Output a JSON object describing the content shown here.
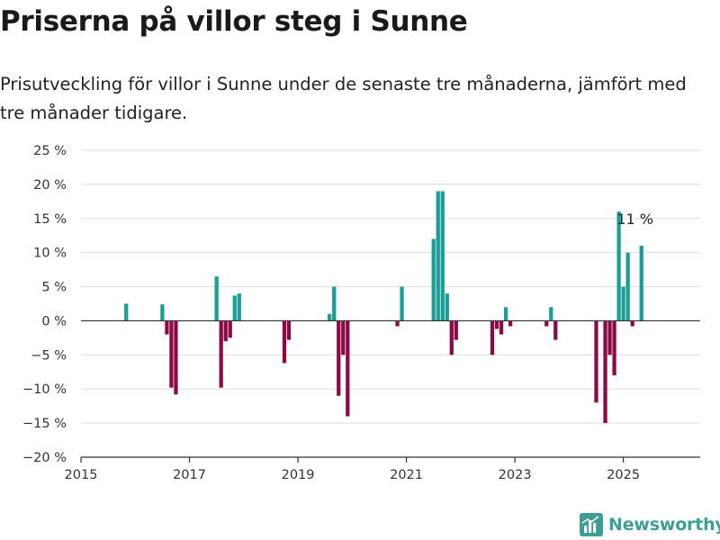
{
  "title": "Priserna på villor steg i Sunne",
  "subtitle": "Prisutveckling för villor i Sunne under de senaste tre månaderna, jämfört med tre månader tidigare.",
  "brand": {
    "name": "Newsworthy",
    "icon": "bar-chart-icon"
  },
  "colors": {
    "positive": "#1a9e96",
    "negative": "#8c0a45",
    "grid": "#dddddd",
    "zero_line": "#333333",
    "brand": "#3d9e95"
  },
  "chart_data": {
    "type": "bar",
    "ylim": [
      -20,
      25
    ],
    "xlim": [
      "2015-01",
      "2026-06"
    ],
    "yticks": [
      25,
      20,
      15,
      10,
      5,
      0,
      -5,
      -10,
      -15,
      -20
    ],
    "ytick_labels": [
      "25 %",
      "20 %",
      "15 %",
      "10 %",
      "5 %",
      "0 %",
      "−5 %",
      "−10 %",
      "−15 %",
      "−20 %"
    ],
    "xticks": [
      "2015-01",
      "2017-01",
      "2019-01",
      "2021-01",
      "2023-01",
      "2025-01"
    ],
    "xtick_labels": [
      "2015",
      "2017",
      "2019",
      "2021",
      "2023",
      "2025"
    ],
    "annotation": {
      "text": "11 %",
      "month": "2025-04"
    },
    "series": [
      {
        "values": [
          [
            "2015-11",
            2.5
          ],
          [
            "2016-07",
            2.4
          ],
          [
            "2016-08",
            -2.0
          ],
          [
            "2016-09",
            -9.8
          ],
          [
            "2016-10",
            -10.8
          ],
          [
            "2017-07",
            6.5
          ],
          [
            "2017-08",
            -9.8
          ],
          [
            "2017-09",
            -3.0
          ],
          [
            "2017-10",
            -2.5
          ],
          [
            "2017-11",
            3.7
          ],
          [
            "2017-12",
            4.0
          ],
          [
            "2018-10",
            -6.2
          ],
          [
            "2018-11",
            -2.8
          ],
          [
            "2019-08",
            1.0
          ],
          [
            "2019-09",
            5.0
          ],
          [
            "2019-10",
            -11.0
          ],
          [
            "2019-11",
            -5.0
          ],
          [
            "2019-12",
            -14.0
          ],
          [
            "2020-11",
            -0.8
          ],
          [
            "2020-12",
            5.0
          ],
          [
            "2021-07",
            12.0
          ],
          [
            "2021-08",
            19.0
          ],
          [
            "2021-09",
            19.0
          ],
          [
            "2021-10",
            4.0
          ],
          [
            "2021-11",
            -5.0
          ],
          [
            "2021-12",
            -2.8
          ],
          [
            "2022-08",
            -5.0
          ],
          [
            "2022-09",
            -1.2
          ],
          [
            "2022-10",
            -2.0
          ],
          [
            "2022-11",
            2.0
          ],
          [
            "2022-12",
            -0.8
          ],
          [
            "2023-08",
            -0.8
          ],
          [
            "2023-09",
            2.0
          ],
          [
            "2023-10",
            -2.8
          ],
          [
            "2024-07",
            -12.0
          ],
          [
            "2024-09",
            -15.0
          ],
          [
            "2024-10",
            -5.0
          ],
          [
            "2024-11",
            -8.0
          ],
          [
            "2024-12",
            16.0
          ],
          [
            "2025-01",
            5.0
          ],
          [
            "2025-02",
            10.0
          ],
          [
            "2025-03",
            -0.8
          ],
          [
            "2025-05",
            11.0
          ]
        ]
      }
    ]
  }
}
